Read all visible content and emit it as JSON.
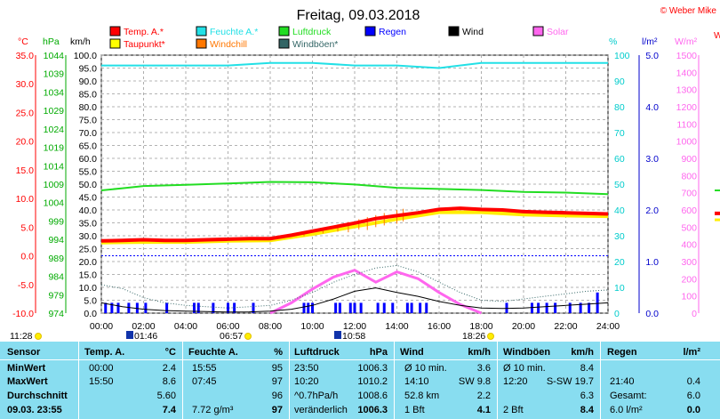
{
  "title": "Freitag, 09.03.2018",
  "credit": "© Weber Mike",
  "legend": [
    {
      "label": "Temp. A.*",
      "color": "#ff0000"
    },
    {
      "label": "Feuchte A.*",
      "color": "#22e0e6"
    },
    {
      "label": "Luftdruck",
      "color": "#22dd22"
    },
    {
      "label": "Regen",
      "color": "#0000ff"
    },
    {
      "label": "Wind",
      "color": "#000000"
    },
    {
      "label": "Solar",
      "color": "#ff66ee"
    },
    {
      "label": "Taupunkt*",
      "color": "#ffff00"
    },
    {
      "label": "Windchill",
      "color": "#ff7700"
    },
    {
      "label": "Windböen*",
      "color": "#336666"
    }
  ],
  "axis_headers": {
    "c": "°C",
    "hpa": "hPa",
    "kmh": "km/h",
    "pct": "%",
    "lm2": "l/m²",
    "wm2": "W/m²",
    "w_partial": "W"
  },
  "chart_data": {
    "type": "line",
    "xlabel": "",
    "x_ticks": [
      "00:00",
      "02:00",
      "04:00",
      "06:00",
      "08:00",
      "10:00",
      "12:00",
      "14:00",
      "16:00",
      "18:00",
      "20:00",
      "22:00",
      "24:00"
    ],
    "axes": {
      "temperature_c": {
        "min": -10,
        "max": 35,
        "ticks": [
          "35.0",
          "30.0",
          "25.0",
          "20.0",
          "15.0",
          "10.0",
          "5.0",
          "0.0",
          "-5.0",
          "-10.0"
        ]
      },
      "pressure_hpa": {
        "min": 974,
        "max": 1044,
        "ticks": [
          "1044",
          "1039",
          "1034",
          "1029",
          "1024",
          "1019",
          "1014",
          "1009",
          "1004",
          "999",
          "994",
          "989",
          "984",
          "979",
          "974"
        ]
      },
      "wind_kmh": {
        "min": 0,
        "max": 100,
        "step": 5
      },
      "humidity_pct": {
        "min": 0,
        "max": 100,
        "ticks": [
          "100",
          "90",
          "80",
          "70",
          "60",
          "50",
          "40",
          "30",
          "20",
          "10",
          "0"
        ]
      },
      "rain_lm2": {
        "min": 0,
        "max": 5,
        "ticks": [
          "5.0",
          "4.0",
          "3.0",
          "2.0",
          "1.0",
          "0.0"
        ]
      },
      "solar_wm2": {
        "min": 0,
        "max": 1500,
        "ticks": [
          "1500",
          "1400",
          "1300",
          "1200",
          "1100",
          "1000",
          "900",
          "800",
          "700",
          "600",
          "500",
          "400",
          "300",
          "200",
          "100",
          "0"
        ]
      }
    },
    "grid": true,
    "series": [
      {
        "name": "Temp. A.*",
        "axis": "temperature_c",
        "x": [
          0,
          1,
          2,
          3,
          4,
          5,
          6,
          7,
          8,
          9,
          10,
          11,
          12,
          13,
          14,
          15,
          16,
          17,
          18,
          19,
          20,
          21,
          22,
          23,
          24
        ],
        "values": [
          2.6,
          2.7,
          2.8,
          2.7,
          2.7,
          2.8,
          2.9,
          3.0,
          3.0,
          3.6,
          4.3,
          5.0,
          5.7,
          6.5,
          7.0,
          7.5,
          8.1,
          8.3,
          8.1,
          8.0,
          7.7,
          7.6,
          7.5,
          7.4,
          7.3
        ]
      },
      {
        "name": "Taupunkt*",
        "axis": "temperature_c",
        "x": [
          0,
          2,
          4,
          6,
          8,
          10,
          12,
          14,
          16,
          18,
          20,
          22,
          24
        ],
        "values": [
          2.3,
          2.4,
          2.4,
          2.6,
          2.7,
          3.8,
          5.1,
          6.4,
          7.6,
          7.6,
          7.2,
          7.0,
          6.9
        ]
      },
      {
        "name": "Feuchte A.*",
        "axis": "humidity_pct",
        "x": [
          0,
          2,
          4,
          6,
          8,
          10,
          12,
          14,
          16,
          18,
          20,
          22,
          24
        ],
        "values": [
          96,
          96,
          96,
          96,
          97,
          97,
          96,
          96,
          95,
          97,
          97,
          97,
          97
        ]
      },
      {
        "name": "Luftdruck",
        "axis": "pressure_hpa",
        "x": [
          0,
          1,
          2,
          4,
          6,
          8,
          10,
          12,
          14,
          16,
          18,
          20,
          22,
          24
        ],
        "values": [
          1007.3,
          1007.9,
          1008.5,
          1008.8,
          1009.2,
          1009.6,
          1009.5,
          1008.9,
          1008.0,
          1007.7,
          1007.4,
          1006.9,
          1006.7,
          1006.3
        ]
      },
      {
        "name": "Wind",
        "axis": "wind_kmh",
        "x": [
          0,
          1,
          2,
          3,
          4,
          5,
          6,
          7,
          8,
          9,
          10,
          11,
          12,
          13,
          14,
          15,
          16,
          17,
          18,
          19,
          20,
          21,
          22,
          23,
          24
        ],
        "values": [
          4.0,
          2.5,
          1.5,
          1.0,
          0.8,
          0.6,
          0.4,
          0.5,
          0.8,
          1.5,
          3.0,
          5.5,
          8.5,
          9.8,
          8.0,
          6.5,
          4.5,
          3.0,
          2.0,
          1.8,
          2.0,
          2.5,
          3.0,
          3.5,
          4.0
        ]
      },
      {
        "name": "Windböen*",
        "axis": "wind_kmh",
        "x": [
          0,
          1,
          2,
          3,
          4,
          5,
          6,
          7,
          8,
          9,
          10,
          11,
          12,
          13,
          14,
          15,
          16,
          17,
          18,
          19,
          20,
          21,
          22,
          23,
          24
        ],
        "values": [
          11.0,
          9.5,
          6.0,
          4.0,
          3.0,
          2.5,
          2.0,
          2.5,
          3.0,
          5.0,
          8.0,
          12.0,
          15.0,
          17.5,
          18.5,
          16.0,
          12.0,
          8.0,
          5.0,
          4.5,
          5.5,
          6.5,
          7.5,
          8.5,
          9.0
        ]
      },
      {
        "name": "Solar",
        "axis": "solar_wm2",
        "x": [
          8,
          9,
          10,
          11,
          12,
          13,
          14,
          15,
          16,
          17,
          18
        ],
        "values": [
          0,
          60,
          140,
          210,
          250,
          180,
          240,
          200,
          120,
          50,
          0
        ]
      },
      {
        "name": "Regen",
        "axis": "rain_lm2",
        "x": [
          0.2,
          0.5,
          0.8,
          1.3,
          1.7,
          2.1,
          3.1,
          4.4,
          4.6,
          5.3,
          6.0,
          6.3,
          7.2,
          9.6,
          9.8,
          10.0,
          11.1,
          11.3,
          11.8,
          12.0,
          12.3,
          13.1,
          13.4,
          13.8,
          14.5,
          14.7,
          15.1,
          15.4,
          19.2,
          20.4,
          20.7,
          21.1,
          21.5,
          22.2,
          22.7,
          23.1,
          23.5
        ],
        "values": [
          0.2,
          0.2,
          0.2,
          0.2,
          0.2,
          0.2,
          0.2,
          0.2,
          0.2,
          0.2,
          0.2,
          0.2,
          0.2,
          0.2,
          0.2,
          0.2,
          0.2,
          0.2,
          0.2,
          0.2,
          0.2,
          0.2,
          0.2,
          0.2,
          0.2,
          0.2,
          0.2,
          0.2,
          0.2,
          0.2,
          0.2,
          0.2,
          0.2,
          0.2,
          0.2,
          0.2,
          0.4
        ]
      }
    ],
    "marker_times": [
      {
        "label": "11:28",
        "icon": "moon-icon"
      },
      {
        "label": "01:46",
        "icon": "sunrise-marker-icon"
      },
      {
        "label": "06:57",
        "icon": "sun-icon"
      },
      {
        "label": "10:58",
        "icon": "sunrise-marker-icon"
      },
      {
        "label": "18:26",
        "icon": "sun-icon"
      }
    ]
  },
  "table": {
    "headers": [
      "Sensor",
      "Temp. A.",
      "°C",
      "Feuchte A.",
      "%",
      "Luftdruck",
      "hPa",
      "Wind",
      "km/h",
      "Windböen",
      "km/h",
      "Regen",
      "l/m²"
    ],
    "row_labels": [
      "MinWert",
      "MaxWert",
      "Durchschnitt",
      "09.03. 23:55"
    ],
    "temp": [
      [
        "00:00",
        "2.4"
      ],
      [
        "15:50",
        "8.6"
      ],
      [
        "",
        "5.60"
      ],
      [
        "",
        "7.4"
      ]
    ],
    "humidity": [
      [
        "15:55",
        "95"
      ],
      [
        "07:45",
        "97"
      ],
      [
        "",
        "96"
      ],
      [
        "7.72 g/m³",
        "97"
      ]
    ],
    "pressure": [
      [
        "23:50",
        "1006.3"
      ],
      [
        "10:20",
        "1010.2"
      ],
      [
        "^0.7hPa/h",
        "1008.6"
      ],
      [
        "veränderlich",
        "1006.3"
      ]
    ],
    "wind": [
      [
        "Ø 10 min.",
        "3.6"
      ],
      [
        "14:10",
        "SW 9.8"
      ],
      [
        "52.8 km",
        "2.2"
      ],
      [
        "1 Bft",
        "4.1"
      ]
    ],
    "gust": [
      [
        "Ø 10 min.",
        "8.4"
      ],
      [
        "12:20",
        "S-SW 19.7"
      ],
      [
        "",
        "6.3"
      ],
      [
        "2 Bft",
        "8.4"
      ]
    ],
    "rain": [
      [
        "",
        ""
      ],
      [
        "21:40",
        "0.4"
      ],
      [
        "Gesamt:",
        "6.0"
      ],
      [
        "6.0 l/m²",
        "0.0"
      ]
    ]
  }
}
